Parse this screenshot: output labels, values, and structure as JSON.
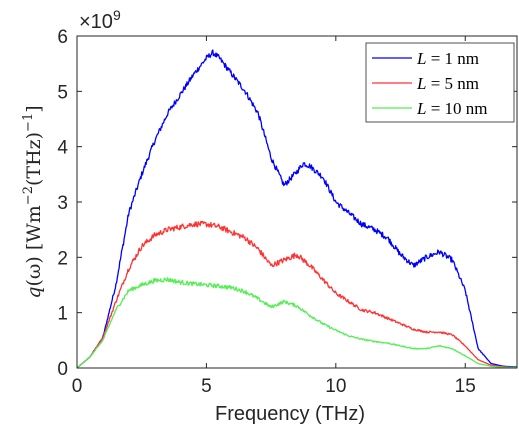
{
  "chart_data": {
    "type": "line",
    "xlabel": "Frequency (THz)",
    "ylabel_parts": {
      "q": "q",
      "omega": "(ω)",
      "unit_open": "[Wm",
      "exp1": "−2",
      "thz": "(THz)",
      "exp2": "−1",
      "close": "]"
    },
    "y_multiplier": {
      "base": "×10",
      "exp": "9"
    },
    "xlim": [
      0,
      17
    ],
    "ylim": [
      0,
      6
    ],
    "xticks": [
      0,
      5,
      10,
      15
    ],
    "xtick_labels": [
      "0",
      "5",
      "10",
      "15"
    ],
    "yticks": [
      0,
      1,
      2,
      3,
      4,
      5,
      6
    ],
    "ytick_labels": [
      "0",
      "1",
      "2",
      "3",
      "4",
      "5",
      "6"
    ],
    "grid": false,
    "legend_position": "top-right",
    "series": [
      {
        "name": "L = 1 nm",
        "legend": {
          "var": "L",
          "eq": " = 1 nm"
        },
        "color": "#0000ff",
        "x": [
          0,
          0.5,
          1,
          1.5,
          2,
          2.5,
          3,
          3.5,
          4,
          4.5,
          5,
          5.25,
          5.5,
          6,
          6.5,
          7,
          7.5,
          8,
          8.5,
          8.75,
          9,
          9.5,
          10,
          10.5,
          11,
          11.5,
          12,
          12.5,
          13,
          13.5,
          14,
          14.5,
          15,
          15.5,
          16,
          16.5,
          17
        ],
        "y": [
          0,
          0.2,
          0.55,
          1.5,
          2.8,
          3.5,
          4.1,
          4.6,
          4.95,
          5.3,
          5.6,
          5.7,
          5.6,
          5.3,
          5.0,
          4.6,
          3.8,
          3.3,
          3.55,
          3.7,
          3.65,
          3.45,
          3.0,
          2.8,
          2.6,
          2.5,
          2.35,
          2.05,
          1.85,
          2.0,
          2.1,
          1.95,
          1.4,
          0.35,
          0.08,
          0.03,
          0.02
        ]
      },
      {
        "name": "L = 5 nm",
        "legend": {
          "var": "L",
          "eq": " = 5 nm"
        },
        "color": "#ff3333",
        "x": [
          0,
          0.5,
          1,
          1.5,
          2,
          2.5,
          3,
          3.5,
          4,
          4.5,
          5,
          5.5,
          6,
          6.5,
          7,
          7.5,
          8,
          8.5,
          9,
          9.5,
          10,
          10.5,
          11,
          11.5,
          12,
          12.5,
          13,
          13.5,
          14,
          14.5,
          15,
          15.5,
          16,
          16.5,
          17
        ],
        "y": [
          0,
          0.2,
          0.55,
          1.2,
          1.8,
          2.2,
          2.4,
          2.5,
          2.55,
          2.6,
          2.6,
          2.55,
          2.45,
          2.35,
          2.15,
          1.85,
          1.95,
          2.05,
          1.85,
          1.6,
          1.35,
          1.2,
          1.05,
          1.0,
          0.9,
          0.8,
          0.7,
          0.65,
          0.65,
          0.6,
          0.4,
          0.15,
          0.05,
          0.02,
          0.01
        ]
      },
      {
        "name": "L = 10 nm",
        "legend": {
          "var": "L",
          "eq": " = 10 nm"
        },
        "color": "#55ee55",
        "x": [
          0,
          0.5,
          1,
          1.5,
          2,
          2.5,
          3,
          3.5,
          4,
          4.5,
          5,
          5.5,
          6,
          6.5,
          7,
          7.5,
          8,
          8.5,
          9,
          9.5,
          10,
          10.5,
          11,
          11.5,
          12,
          12.5,
          13,
          13.5,
          14,
          14.5,
          15,
          15.5,
          16,
          16.5,
          17
        ],
        "y": [
          0,
          0.2,
          0.5,
          1.05,
          1.4,
          1.5,
          1.58,
          1.6,
          1.55,
          1.52,
          1.5,
          1.48,
          1.45,
          1.38,
          1.25,
          1.1,
          1.2,
          1.12,
          0.95,
          0.8,
          0.68,
          0.58,
          0.52,
          0.48,
          0.45,
          0.4,
          0.35,
          0.35,
          0.4,
          0.35,
          0.22,
          0.08,
          0.03,
          0.01,
          0.01
        ]
      }
    ]
  }
}
